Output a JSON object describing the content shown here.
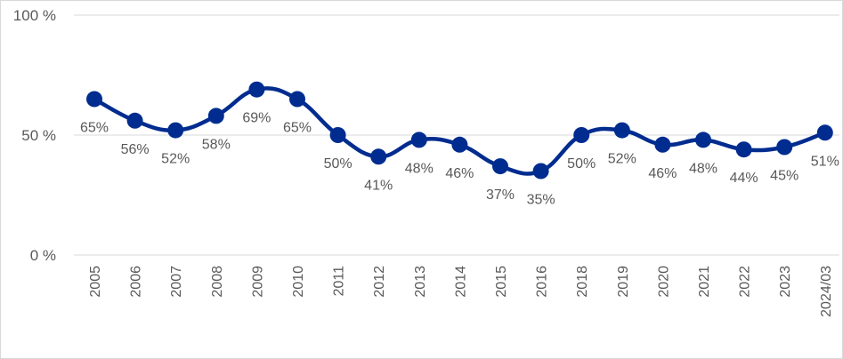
{
  "chart_data": {
    "type": "line",
    "title": "",
    "xlabel": "",
    "ylabel": "",
    "ylim": [
      0,
      100
    ],
    "yticks": [
      {
        "value": 0,
        "label": "0 %"
      },
      {
        "value": 50,
        "label": "50 %"
      },
      {
        "value": 100,
        "label": "100 %"
      }
    ],
    "grid": "horizontal",
    "legend": "none",
    "line_style": "smooth",
    "categories": [
      "2005",
      "2006",
      "2007",
      "2008",
      "2009",
      "2010",
      "2011",
      "2012",
      "2013",
      "2014",
      "2015",
      "2016",
      "2018",
      "2019",
      "2020",
      "2021",
      "2022",
      "2023",
      "2024/03"
    ],
    "series": [
      {
        "values": [
          65,
          56,
          52,
          58,
          69,
          65,
          50,
          41,
          48,
          46,
          37,
          35,
          50,
          52,
          46,
          48,
          44,
          45,
          51
        ],
        "labels": [
          "65%",
          "56%",
          "52%",
          "58%",
          "69%",
          "65%",
          "50%",
          "41%",
          "48%",
          "46%",
          "37%",
          "35%",
          "50%",
          "52%",
          "46%",
          "48%",
          "44%",
          "45%",
          "51%"
        ],
        "color": "#002C8F"
      }
    ],
    "colors": {
      "gridline": "#d9d9d9",
      "text": "#595959"
    }
  }
}
